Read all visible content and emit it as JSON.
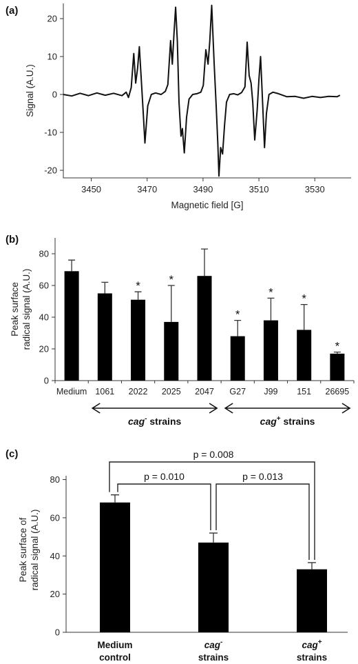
{
  "chart_data": [
    {
      "panel": "(a)",
      "type": "line",
      "xlabel": "Magnetic field [G]",
      "ylabel": "Signal (A.U.)",
      "xlim": [
        3440,
        3543
      ],
      "ylim": [
        -22,
        24
      ],
      "xticks": [
        3450,
        3470,
        3490,
        3510,
        3530
      ],
      "yticks": [
        -20,
        -10,
        0,
        10,
        20
      ],
      "series": [
        {
          "points": [
            [
              3440.0,
              0.0
            ],
            [
              3443.0,
              -0.4
            ],
            [
              3446.0,
              0.3
            ],
            [
              3449.0,
              -0.3
            ],
            [
              3452.0,
              0.4
            ],
            [
              3455.0,
              -0.2
            ],
            [
              3458.0,
              0.3
            ],
            [
              3461.0,
              -0.3
            ],
            [
              3462.5,
              0.6
            ],
            [
              3463.3,
              -0.8
            ],
            [
              3464.3,
              1.8
            ],
            [
              3465.2,
              10.8
            ],
            [
              3465.9,
              3.0
            ],
            [
              3466.6,
              7.0
            ],
            [
              3467.2,
              12.6
            ],
            [
              3467.9,
              4.0
            ],
            [
              3468.6,
              -5.0
            ],
            [
              3469.2,
              -12.8
            ],
            [
              3470.2,
              -3.0
            ],
            [
              3471.5,
              0.0
            ],
            [
              3473.0,
              0.4
            ],
            [
              3475.0,
              0.0
            ],
            [
              3476.5,
              0.8
            ],
            [
              3477.4,
              2.6
            ],
            [
              3478.4,
              14.2
            ],
            [
              3479.0,
              8.0
            ],
            [
              3479.6,
              16.0
            ],
            [
              3480.2,
              23.0
            ],
            [
              3480.8,
              14.0
            ],
            [
              3481.4,
              -2.0
            ],
            [
              3482.1,
              -11.0
            ],
            [
              3482.6,
              -9.0
            ],
            [
              3483.3,
              -15.4
            ],
            [
              3484.1,
              -6.0
            ],
            [
              3485.0,
              -1.2
            ],
            [
              3486.3,
              0.0
            ],
            [
              3487.8,
              0.2
            ],
            [
              3489.2,
              0.6
            ],
            [
              3490.1,
              2.4
            ],
            [
              3491.0,
              11.8
            ],
            [
              3491.8,
              8.0
            ],
            [
              3492.4,
              14.0
            ],
            [
              3493.1,
              23.5
            ],
            [
              3494.0,
              8.0
            ],
            [
              3494.7,
              -3.0
            ],
            [
              3495.3,
              -13.0
            ],
            [
              3495.7,
              -21.5
            ],
            [
              3496.3,
              -14.0
            ],
            [
              3497.0,
              -15.7
            ],
            [
              3497.7,
              -8.0
            ],
            [
              3498.4,
              -2.0
            ],
            [
              3499.5,
              0.0
            ],
            [
              3501.0,
              0.2
            ],
            [
              3502.4,
              -0.1
            ],
            [
              3503.8,
              0.5
            ],
            [
              3505.0,
              2.0
            ],
            [
              3505.8,
              13.8
            ],
            [
              3506.5,
              5.0
            ],
            [
              3507.2,
              3.0
            ],
            [
              3507.8,
              -2.0
            ],
            [
              3508.5,
              -12.0
            ],
            [
              3509.4,
              -4.0
            ],
            [
              3510.0,
              4.0
            ],
            [
              3510.6,
              10.0
            ],
            [
              3511.3,
              -2.0
            ],
            [
              3512.0,
              -14.0
            ],
            [
              3512.7,
              -5.0
            ],
            [
              3513.6,
              0.0
            ],
            [
              3515.0,
              0.6
            ],
            [
              3517.0,
              0.2
            ],
            [
              3520.0,
              -0.6
            ],
            [
              3523.0,
              -0.5
            ],
            [
              3526.0,
              -1.0
            ],
            [
              3529.0,
              -0.5
            ],
            [
              3532.0,
              -0.8
            ],
            [
              3535.0,
              -0.5
            ],
            [
              3538.0,
              -0.6
            ],
            [
              3539.0,
              -0.2
            ]
          ]
        }
      ]
    },
    {
      "panel": "(b)",
      "type": "bar",
      "ylabel": [
        "Peak surface",
        "radical signal (A.U.)"
      ],
      "ylim": [
        0,
        90
      ],
      "yticks": [
        0,
        20,
        40,
        60,
        80
      ],
      "categories": [
        "Medium",
        "1061",
        "2022",
        "2025",
        "2047",
        "G27",
        "J99",
        "151",
        "26695"
      ],
      "values": [
        69,
        55,
        51,
        37,
        66,
        28,
        38,
        32,
        17
      ],
      "errors": [
        7,
        7,
        5,
        23,
        17,
        10,
        14,
        16,
        1
      ],
      "significant": [
        false,
        false,
        true,
        true,
        false,
        true,
        true,
        true,
        true
      ],
      "significance_marker": "*",
      "groups": [
        {
          "prefix": "cag",
          "superscript": "-",
          "suffix": " strains",
          "from": 1,
          "to": 4
        },
        {
          "prefix": "cag",
          "superscript": "+",
          "suffix": " strains",
          "from": 5,
          "to": 8
        }
      ]
    },
    {
      "panel": "(c)",
      "type": "bar",
      "ylabel": [
        "Peak surface of",
        "radical signal (A.U.)"
      ],
      "ylim": [
        0,
        82
      ],
      "yticks": [
        0,
        20,
        40,
        60,
        80
      ],
      "categories": [
        {
          "line1": "Medium",
          "sup": "",
          "line2": "control",
          "italic": false
        },
        {
          "line1": "cag",
          "sup": "-",
          "line2": "strains",
          "italic": true
        },
        {
          "line1": "cag",
          "sup": "+",
          "line2": "strains",
          "italic": true
        }
      ],
      "values": [
        68,
        47,
        33
      ],
      "errors": [
        4,
        5,
        3.5
      ],
      "comparisons": [
        {
          "a": 0,
          "b": 1,
          "label": "p = 0.010"
        },
        {
          "a": 1,
          "b": 2,
          "label": "p = 0.013"
        },
        {
          "a": 0,
          "b": 2,
          "label": "p = 0.008"
        }
      ]
    }
  ]
}
